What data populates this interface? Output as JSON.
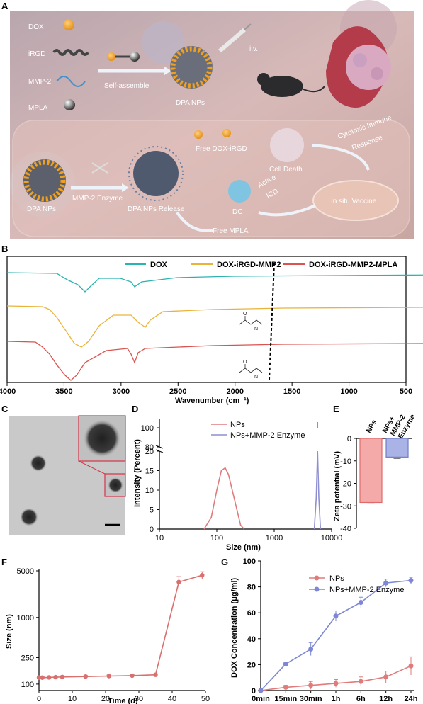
{
  "panel_labels": {
    "a": "A",
    "b": "B",
    "c": "C",
    "d": "D",
    "e": "E",
    "f": "F",
    "g": "G"
  },
  "schematic": {
    "components": [
      "DOX",
      "iRGD",
      "MMP-2",
      "MPLA"
    ],
    "self_assemble": "Self-assemble",
    "iv": "i.v.",
    "dpa_nps": "DPA NPs",
    "dpa_nps_2": "DPA NPs",
    "mmp2_enzyme": "MMP-2 Enzyme",
    "release": "DPA NPs Release",
    "free_dox_irgd": "Free DOX-iRGD",
    "cell_death": "Cell Death",
    "active_icd_1": "Active",
    "active_icd_2": "ICD",
    "dc": "DC",
    "free_mpla": "Free MPLA",
    "in_situ": "In situ Vaccine",
    "cytotoxic_1": "Cytotoxic Immune",
    "cytotoxic_2": "Response"
  },
  "chart_data": [
    {
      "type": "line",
      "panel": "B",
      "legend": [
        "DOX",
        "DOX-iRGD-MMP2",
        "DOX-iRGD-MMP2-MPLA"
      ],
      "colors": [
        "#2ab3b0",
        "#e9b33a",
        "#d9534f"
      ],
      "xlabel": "Wavenumber (cm⁻¹)",
      "x_ticks": [
        4000,
        3500,
        3000,
        2500,
        2000,
        1500,
        1000,
        500
      ],
      "xlim": [
        4000,
        500
      ],
      "reversed_x": true,
      "marker_line_x": 1650
    },
    {
      "type": "line",
      "panel": "D",
      "legend": [
        "NPs",
        "NPs+MMP-2 Enzyme"
      ],
      "colors": [
        "#e07b7b",
        "#8e8fd0"
      ],
      "xlabel": "Size (nm)",
      "ylabel": "Intensity (Percent)",
      "x_scale": "log",
      "x_ticks": [
        "10",
        "100",
        "1000",
        "10000"
      ],
      "y_ticks_upper": [
        "80",
        "100"
      ],
      "y_ticks_lower": [
        "0",
        "5",
        "10",
        "15",
        "20"
      ],
      "series": [
        {
          "name": "NPs",
          "x": [
            60,
            80,
            100,
            120,
            140,
            160,
            200,
            260,
            300
          ],
          "y": [
            0,
            3,
            10,
            15,
            15.7,
            14,
            8,
            1,
            0
          ]
        },
        {
          "name": "NPs+MMP-2 Enzyme",
          "x": [
            5000,
            5400,
            5700,
            6000,
            6400
          ],
          "y": [
            0,
            8,
            20,
            8,
            0
          ]
        }
      ]
    },
    {
      "type": "bar",
      "panel": "E",
      "categories": [
        "NPs",
        "NPs+ MMP-2 Enzyme"
      ],
      "values": [
        -28.5,
        -8.3
      ],
      "errors": [
        0.6,
        0.6
      ],
      "colors": [
        "#f5aaaa",
        "#aab3e6"
      ],
      "ylabel": "Zeta potential (mV)",
      "ylim": [
        -40,
        0
      ],
      "y_ticks": [
        "0",
        "-10",
        "-20",
        "-30",
        "-40"
      ]
    },
    {
      "type": "line",
      "panel": "F",
      "xlabel": "Time (d)",
      "ylabel": "Size (nm)",
      "y_scale": "log",
      "x_ticks": [
        "0",
        "10",
        "20",
        "30",
        "40",
        "50"
      ],
      "y_ticks": [
        "100",
        "250",
        "1000",
        "5000"
      ],
      "color": "#d9706f",
      "series": [
        {
          "name": "",
          "x": [
            0,
            1,
            3,
            5,
            7,
            14,
            21,
            28,
            35,
            42,
            49
          ],
          "y": [
            125,
            125,
            126,
            127,
            128,
            130,
            132,
            134,
            138,
            3400,
            4300
          ],
          "err": [
            5,
            5,
            5,
            5,
            5,
            5,
            5,
            5,
            5,
            700,
            550
          ]
        }
      ]
    },
    {
      "type": "line",
      "panel": "G",
      "legend": [
        "NPs",
        "NPs+MMP-2 Enzyme"
      ],
      "colors": [
        "#e07b7b",
        "#7d87d4"
      ],
      "xlabel": "",
      "ylabel": "DOX Concentration (μg/ml)",
      "categories": [
        "0min",
        "15min",
        "30min",
        "1h",
        "6h",
        "12h",
        "24h"
      ],
      "ylim": [
        0,
        100
      ],
      "y_ticks": [
        "0",
        "20",
        "40",
        "60",
        "80",
        "100"
      ],
      "series": [
        {
          "name": "NPs",
          "values": [
            0,
            2.5,
            4,
            5.5,
            7,
            10.5,
            19
          ],
          "err": [
            0,
            1.5,
            3,
            3,
            3.5,
            4.5,
            7
          ]
        },
        {
          "name": "NPs+MMP-2 Enzyme",
          "values": [
            0,
            20.5,
            32,
            57.5,
            68,
            83,
            85
          ],
          "err": [
            0,
            1,
            5,
            4,
            4,
            3,
            2.5
          ]
        }
      ]
    }
  ],
  "tem": {
    "scale_bar": ""
  }
}
